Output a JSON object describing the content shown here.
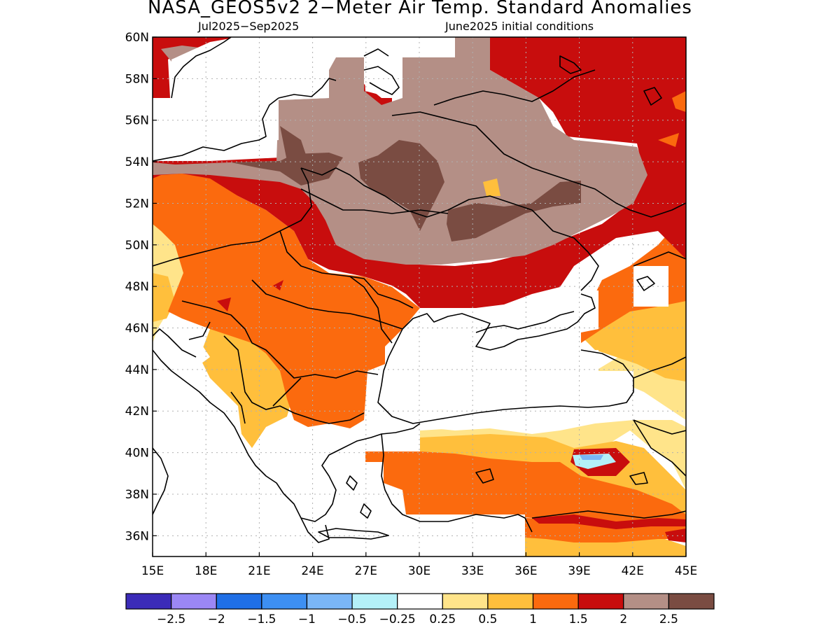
{
  "title": "NASA_GEOS5v2 2−Meter Air Temp. Standard Anomalies",
  "subtitle_left": "Jul2025−Sep2025",
  "subtitle_right": "June2025 initial conditions",
  "map": {
    "lon_range": [
      15,
      45
    ],
    "lat_range": [
      35,
      60
    ],
    "lon_ticks": [
      "15E",
      "18E",
      "21E",
      "24E",
      "27E",
      "30E",
      "33E",
      "36E",
      "39E",
      "42E",
      "45E"
    ],
    "lat_ticks": [
      "60N",
      "58N",
      "56N",
      "54N",
      "52N",
      "50N",
      "48N",
      "46N",
      "44N",
      "42N",
      "40N",
      "38N",
      "36N"
    ],
    "grid": true
  },
  "legend": {
    "colors": [
      "#3b2bb8",
      "#9b87f5",
      "#1f6fe6",
      "#3d8ff2",
      "#7ab6f7",
      "#b4f0f8",
      "#ffffff",
      "#ffe48a",
      "#ffbf3c",
      "#fb6a0e",
      "#c80d0d",
      "#b48f86",
      "#7a4c42"
    ],
    "labels": [
      "−2.5",
      "−2",
      "−1.5",
      "−1",
      "−0.5",
      "−0.25",
      "0.25",
      "0.5",
      "1",
      "1.5",
      "2",
      "2.5"
    ]
  },
  "colors": {
    "white": "#ffffff",
    "lightyellow": "#ffe48a",
    "yellow": "#ffbf3c",
    "orange": "#fb6a0e",
    "red": "#c80d0d",
    "brown": "#b48f86",
    "darkbrown": "#7a4c42",
    "lightblue": "#b4f0f8",
    "blue": "#7ab6f7"
  }
}
